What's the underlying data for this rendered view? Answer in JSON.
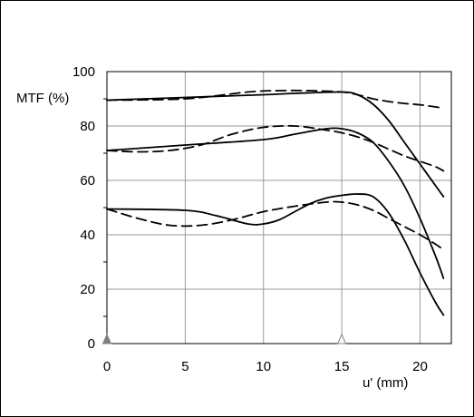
{
  "chart_data": {
    "type": "line",
    "title": "",
    "ylabel": "MTF (%)",
    "xlabel": "u' (mm)",
    "xlim": [
      0,
      22
    ],
    "ylim": [
      0,
      100
    ],
    "xticks": [
      0,
      5,
      10,
      15,
      20
    ],
    "xtick_labels": [
      "0",
      "5",
      "10",
      "15",
      "20"
    ],
    "yticks": [
      0,
      20,
      40,
      60,
      80,
      100
    ],
    "ytick_labels": [
      "0",
      "20",
      "40",
      "60",
      "80",
      "100"
    ],
    "grid": true,
    "markers": [
      {
        "x": 0,
        "style": "filled-triangle",
        "color": "#808080"
      },
      {
        "x": 15,
        "style": "open-triangle",
        "color": "#808080"
      }
    ],
    "series": [
      {
        "group": "high",
        "style": "solid",
        "color": "#000000",
        "x": [
          0,
          5,
          10,
          12,
          15,
          16,
          17,
          18,
          19,
          20,
          21,
          21.5
        ],
        "y": [
          89.5,
          90.5,
          91.5,
          92,
          92.5,
          91.5,
          88,
          82,
          74,
          66,
          58,
          54
        ]
      },
      {
        "group": "high",
        "style": "dashed",
        "color": "#000000",
        "x": [
          0,
          5,
          9,
          11,
          13,
          15,
          16,
          17,
          18,
          19,
          20,
          21,
          21.5
        ],
        "y": [
          89.5,
          90,
          92.5,
          93,
          93,
          92.5,
          91.5,
          90,
          89,
          88.3,
          87.8,
          87,
          86.5
        ]
      },
      {
        "group": "mid",
        "style": "solid",
        "color": "#000000",
        "x": [
          0,
          5,
          10,
          12,
          14,
          15,
          16,
          17,
          18,
          19,
          20,
          21,
          21.5
        ],
        "y": [
          71,
          73,
          75,
          77,
          79,
          79,
          77.5,
          74,
          67,
          58,
          46,
          32,
          24
        ]
      },
      {
        "group": "mid",
        "style": "dashed",
        "color": "#000000",
        "x": [
          0,
          2,
          4,
          6,
          8,
          10,
          12,
          14,
          15,
          16,
          17,
          18,
          19,
          20,
          21,
          21.5
        ],
        "y": [
          71,
          70.5,
          71,
          73,
          77,
          79.5,
          80,
          78.5,
          77.5,
          76,
          74,
          71.5,
          69,
          67,
          65,
          63.5
        ]
      },
      {
        "group": "low",
        "style": "solid",
        "color": "#000000",
        "x": [
          0,
          5,
          7,
          9,
          10,
          11,
          12,
          13,
          14,
          15,
          16,
          17,
          18,
          19,
          20,
          21,
          21.5
        ],
        "y": [
          49.5,
          49,
          47,
          44,
          44,
          45.5,
          48.5,
          51.5,
          53.5,
          54.5,
          55,
          54,
          48,
          38,
          26,
          15,
          10.5
        ]
      },
      {
        "group": "low",
        "style": "dashed",
        "color": "#000000",
        "x": [
          0,
          2,
          4,
          6,
          8,
          10,
          12,
          14,
          15,
          16,
          17,
          18,
          19,
          20,
          21,
          21.5
        ],
        "y": [
          49.5,
          46,
          43.5,
          43.5,
          45.5,
          48.5,
          50.5,
          52,
          52,
          51,
          49,
          46,
          43,
          40,
          36.5,
          34.5
        ]
      }
    ]
  }
}
